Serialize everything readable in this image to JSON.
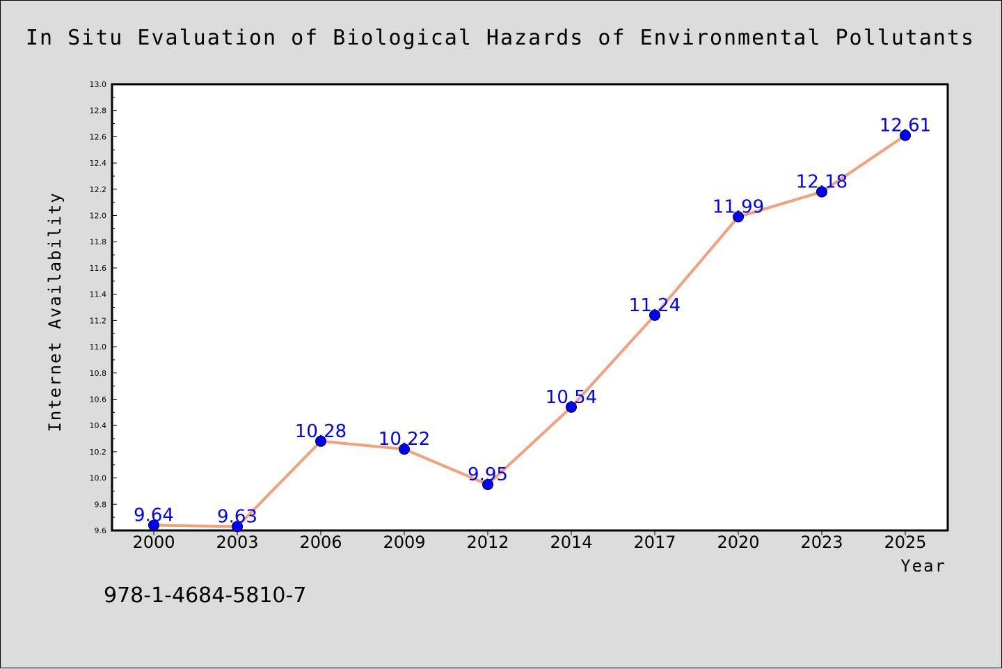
{
  "chart_data": {
    "type": "line",
    "title": "In Situ Evaluation of Biological Hazards of Environmental Pollutants",
    "xlabel": "Year",
    "ylabel": "Internet Availability",
    "categories": [
      "2000",
      "2003",
      "2006",
      "2009",
      "2012",
      "2014",
      "2017",
      "2020",
      "2023",
      "2025"
    ],
    "series": [
      {
        "values": [
          9.64,
          9.63,
          10.28,
          10.22,
          9.95,
          10.54,
          11.24,
          11.99,
          12.18,
          12.61
        ],
        "labels": [
          "9.64",
          "9.63",
          "10.28",
          "10.22",
          "9.95",
          "10.54",
          "11.24",
          "11.99",
          "12.18",
          "12.61"
        ]
      }
    ],
    "ylim": [
      9.6,
      13.0
    ],
    "yticks": [
      "9.6",
      "9.8",
      "10.0",
      "10.2",
      "10.4",
      "10.6",
      "10.8",
      "11.0",
      "11.2",
      "11.4",
      "11.6",
      "11.8",
      "12.0",
      "12.2",
      "12.4",
      "12.6",
      "12.8",
      "13.0"
    ],
    "grid": false,
    "legend": "none",
    "colors": {
      "line": "#f4a07a",
      "marker": "#0000ff",
      "data_label": "#0000ff",
      "plot_bg": "#ffffff",
      "figure_bg": "#dcdcdc"
    }
  },
  "footer": {
    "isbn": "978-1-4684-5810-7"
  }
}
